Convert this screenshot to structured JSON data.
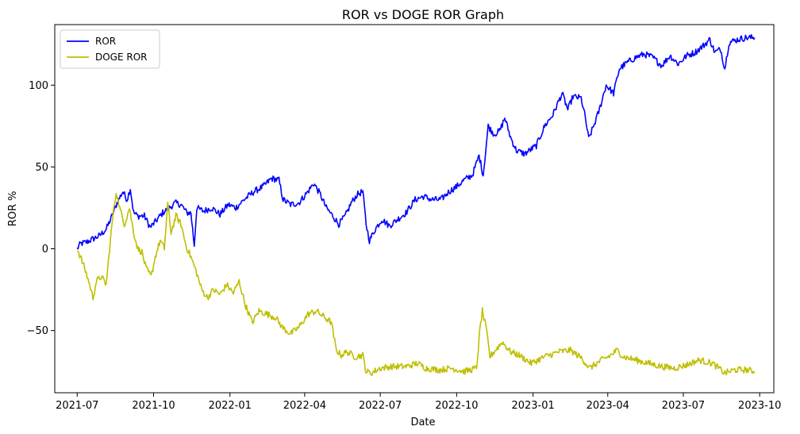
{
  "chart_data": {
    "type": "line",
    "title": "ROR vs DOGE ROR Graph",
    "xlabel": "Date",
    "ylabel": "ROR %",
    "xlim": [
      "2021-06-04",
      "2023-10-18"
    ],
    "ylim": [
      -88,
      137
    ],
    "x_ticks": [
      "2021-07",
      "2021-10",
      "2022-01",
      "2022-04",
      "2022-07",
      "2022-10",
      "2023-01",
      "2023-04",
      "2023-07",
      "2023-10"
    ],
    "y_ticks": [
      -50,
      0,
      50,
      100
    ],
    "legend_position": "top-left",
    "grid": false,
    "series": [
      {
        "name": "ROR",
        "color": "#0000ff",
        "points": [
          [
            "2021-07-01",
            0
          ],
          [
            "2021-07-05",
            3
          ],
          [
            "2021-07-12",
            4
          ],
          [
            "2021-07-20",
            6
          ],
          [
            "2021-07-28",
            8
          ],
          [
            "2021-08-05",
            12
          ],
          [
            "2021-08-12",
            20
          ],
          [
            "2021-08-18",
            28
          ],
          [
            "2021-08-25",
            35
          ],
          [
            "2021-08-30",
            30
          ],
          [
            "2021-09-03",
            37
          ],
          [
            "2021-09-07",
            22
          ],
          [
            "2021-09-12",
            20
          ],
          [
            "2021-09-20",
            20
          ],
          [
            "2021-09-27",
            13
          ],
          [
            "2021-10-04",
            17
          ],
          [
            "2021-10-12",
            22
          ],
          [
            "2021-10-20",
            25
          ],
          [
            "2021-10-27",
            28
          ],
          [
            "2021-11-03",
            27
          ],
          [
            "2021-11-10",
            22
          ],
          [
            "2021-11-15",
            22
          ],
          [
            "2021-11-19",
            2
          ],
          [
            "2021-11-22",
            25
          ],
          [
            "2021-11-30",
            23
          ],
          [
            "2021-12-10",
            25
          ],
          [
            "2021-12-20",
            21
          ],
          [
            "2021-12-30",
            27
          ],
          [
            "2022-01-08",
            25
          ],
          [
            "2022-01-18",
            30
          ],
          [
            "2022-01-30",
            35
          ],
          [
            "2022-02-10",
            38
          ],
          [
            "2022-02-20",
            43
          ],
          [
            "2022-03-01",
            42
          ],
          [
            "2022-03-06",
            30
          ],
          [
            "2022-03-15",
            27
          ],
          [
            "2022-03-25",
            28
          ],
          [
            "2022-04-05",
            35
          ],
          [
            "2022-04-12",
            40
          ],
          [
            "2022-04-20",
            33
          ],
          [
            "2022-04-27",
            25
          ],
          [
            "2022-05-05",
            20
          ],
          [
            "2022-05-12",
            15
          ],
          [
            "2022-05-20",
            20
          ],
          [
            "2022-05-27",
            28
          ],
          [
            "2022-06-03",
            33
          ],
          [
            "2022-06-10",
            35
          ],
          [
            "2022-06-14",
            15
          ],
          [
            "2022-06-18",
            5
          ],
          [
            "2022-06-25",
            12
          ],
          [
            "2022-07-03",
            18
          ],
          [
            "2022-07-12",
            14
          ],
          [
            "2022-07-22",
            18
          ],
          [
            "2022-08-01",
            22
          ],
          [
            "2022-08-12",
            30
          ],
          [
            "2022-08-22",
            32
          ],
          [
            "2022-09-01",
            30
          ],
          [
            "2022-09-12",
            30
          ],
          [
            "2022-09-22",
            35
          ],
          [
            "2022-10-01",
            38
          ],
          [
            "2022-10-10",
            42
          ],
          [
            "2022-10-20",
            45
          ],
          [
            "2022-10-28",
            57
          ],
          [
            "2022-11-02",
            45
          ],
          [
            "2022-11-08",
            75
          ],
          [
            "2022-11-15",
            70
          ],
          [
            "2022-11-22",
            72
          ],
          [
            "2022-11-28",
            80
          ],
          [
            "2022-12-05",
            68
          ],
          [
            "2022-12-12",
            60
          ],
          [
            "2022-12-22",
            58
          ],
          [
            "2023-01-05",
            63
          ],
          [
            "2023-01-15",
            75
          ],
          [
            "2023-01-25",
            82
          ],
          [
            "2023-02-05",
            95
          ],
          [
            "2023-02-12",
            85
          ],
          [
            "2023-02-18",
            93
          ],
          [
            "2023-02-28",
            92
          ],
          [
            "2023-03-05",
            80
          ],
          [
            "2023-03-09",
            67
          ],
          [
            "2023-03-15",
            75
          ],
          [
            "2023-03-22",
            85
          ],
          [
            "2023-03-30",
            100
          ],
          [
            "2023-04-08",
            95
          ],
          [
            "2023-04-15",
            110
          ],
          [
            "2023-04-25",
            114
          ],
          [
            "2023-05-05",
            117
          ],
          [
            "2023-05-15",
            119
          ],
          [
            "2023-05-25",
            117
          ],
          [
            "2023-06-05",
            112
          ],
          [
            "2023-06-15",
            118
          ],
          [
            "2023-06-25",
            113
          ],
          [
            "2023-07-05",
            118
          ],
          [
            "2023-07-15",
            120
          ],
          [
            "2023-07-25",
            124
          ],
          [
            "2023-08-02",
            128
          ],
          [
            "2023-08-08",
            120
          ],
          [
            "2023-08-15",
            122
          ],
          [
            "2023-08-20",
            110
          ],
          [
            "2023-08-25",
            126
          ],
          [
            "2023-09-05",
            128
          ],
          [
            "2023-09-15",
            129
          ],
          [
            "2023-09-25",
            129
          ]
        ]
      },
      {
        "name": "DOGE ROR",
        "color": "#bfbf00",
        "points": [
          [
            "2021-07-01",
            0
          ],
          [
            "2021-07-05",
            -5
          ],
          [
            "2021-07-10",
            -12
          ],
          [
            "2021-07-15",
            -20
          ],
          [
            "2021-07-20",
            -30
          ],
          [
            "2021-07-24",
            -20
          ],
          [
            "2021-07-30",
            -17
          ],
          [
            "2021-08-05",
            -22
          ],
          [
            "2021-08-09",
            0
          ],
          [
            "2021-08-13",
            20
          ],
          [
            "2021-08-17",
            35
          ],
          [
            "2021-08-21",
            25
          ],
          [
            "2021-08-27",
            15
          ],
          [
            "2021-09-02",
            25
          ],
          [
            "2021-09-07",
            10
          ],
          [
            "2021-09-12",
            0
          ],
          [
            "2021-09-17",
            -2
          ],
          [
            "2021-09-22",
            -12
          ],
          [
            "2021-09-28",
            -17
          ],
          [
            "2021-10-03",
            -5
          ],
          [
            "2021-10-09",
            5
          ],
          [
            "2021-10-14",
            0
          ],
          [
            "2021-10-18",
            28
          ],
          [
            "2021-10-22",
            10
          ],
          [
            "2021-10-28",
            20
          ],
          [
            "2021-11-03",
            15
          ],
          [
            "2021-11-09",
            2
          ],
          [
            "2021-11-15",
            -5
          ],
          [
            "2021-11-22",
            -15
          ],
          [
            "2021-11-28",
            -25
          ],
          [
            "2021-12-05",
            -30
          ],
          [
            "2021-12-12",
            -25
          ],
          [
            "2021-12-20",
            -28
          ],
          [
            "2021-12-28",
            -22
          ],
          [
            "2022-01-05",
            -27
          ],
          [
            "2022-01-12",
            -20
          ],
          [
            "2022-01-20",
            -35
          ],
          [
            "2022-01-28",
            -45
          ],
          [
            "2022-02-05",
            -38
          ],
          [
            "2022-02-15",
            -40
          ],
          [
            "2022-02-25",
            -42
          ],
          [
            "2022-03-05",
            -48
          ],
          [
            "2022-03-15",
            -52
          ],
          [
            "2022-03-25",
            -48
          ],
          [
            "2022-04-05",
            -40
          ],
          [
            "2022-04-15",
            -38
          ],
          [
            "2022-04-25",
            -42
          ],
          [
            "2022-05-03",
            -45
          ],
          [
            "2022-05-09",
            -62
          ],
          [
            "2022-05-15",
            -65
          ],
          [
            "2022-05-22",
            -63
          ],
          [
            "2022-06-01",
            -66
          ],
          [
            "2022-06-10",
            -65
          ],
          [
            "2022-06-14",
            -75
          ],
          [
            "2022-06-20",
            -76
          ],
          [
            "2022-07-01",
            -73
          ],
          [
            "2022-07-15",
            -72
          ],
          [
            "2022-08-01",
            -72
          ],
          [
            "2022-08-15",
            -70
          ],
          [
            "2022-08-25",
            -73
          ],
          [
            "2022-09-10",
            -74
          ],
          [
            "2022-09-25",
            -73
          ],
          [
            "2022-10-10",
            -75
          ],
          [
            "2022-10-25",
            -73
          ],
          [
            "2022-10-29",
            -50
          ],
          [
            "2022-11-01",
            -38
          ],
          [
            "2022-11-06",
            -50
          ],
          [
            "2022-11-10",
            -66
          ],
          [
            "2022-11-15",
            -63
          ],
          [
            "2022-11-25",
            -57
          ],
          [
            "2022-12-05",
            -63
          ],
          [
            "2022-12-15",
            -65
          ],
          [
            "2022-12-30",
            -70
          ],
          [
            "2023-01-15",
            -66
          ],
          [
            "2023-02-01",
            -63
          ],
          [
            "2023-02-15",
            -62
          ],
          [
            "2023-03-01",
            -67
          ],
          [
            "2023-03-10",
            -73
          ],
          [
            "2023-03-25",
            -68
          ],
          [
            "2023-04-05",
            -65
          ],
          [
            "2023-04-12",
            -62
          ],
          [
            "2023-04-20",
            -66
          ],
          [
            "2023-05-05",
            -68
          ],
          [
            "2023-05-20",
            -70
          ],
          [
            "2023-06-05",
            -72
          ],
          [
            "2023-06-20",
            -73
          ],
          [
            "2023-07-05",
            -71
          ],
          [
            "2023-07-20",
            -68
          ],
          [
            "2023-08-05",
            -70
          ],
          [
            "2023-08-15",
            -74
          ],
          [
            "2023-08-20",
            -76
          ],
          [
            "2023-09-01",
            -74
          ],
          [
            "2023-09-15",
            -74
          ],
          [
            "2023-09-25",
            -75
          ]
        ]
      }
    ]
  }
}
